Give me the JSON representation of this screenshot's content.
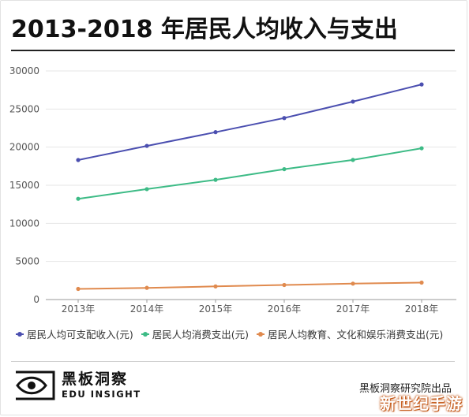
{
  "title": "2013-2018 年居民人均收入与支出",
  "chart_data": {
    "type": "line",
    "title": "2013-2018 年居民人均收入与支出",
    "xlabel": "",
    "ylabel": "",
    "categories": [
      "2013年",
      "2014年",
      "2015年",
      "2016年",
      "2017年",
      "2018年"
    ],
    "ylim": [
      0,
      30000
    ],
    "yticks": [
      0,
      5000,
      10000,
      15000,
      20000,
      25000,
      30000
    ],
    "grid": "horizontal",
    "legend_position": "bottom",
    "series": [
      {
        "name": "居民人均可支配收入(元)",
        "color": "#4b4fb0",
        "values": [
          18311,
          20167,
          21966,
          23821,
          25974,
          28228
        ]
      },
      {
        "name": "居民人均消费支出(元)",
        "color": "#3dbb86",
        "values": [
          13220,
          14491,
          15712,
          17111,
          18322,
          19853
        ]
      },
      {
        "name": "居民人均教育、文化和娱乐消费支出(元)",
        "color": "#e08a4e",
        "values": [
          1398,
          1536,
          1723,
          1915,
          2086,
          2226
        ]
      }
    ]
  },
  "footer": {
    "logo_cn": "黑板洞察",
    "logo_en": "EDU INSIGHT",
    "source": "黑板洞察研究院出品",
    "watermark": "新世纪手游"
  }
}
